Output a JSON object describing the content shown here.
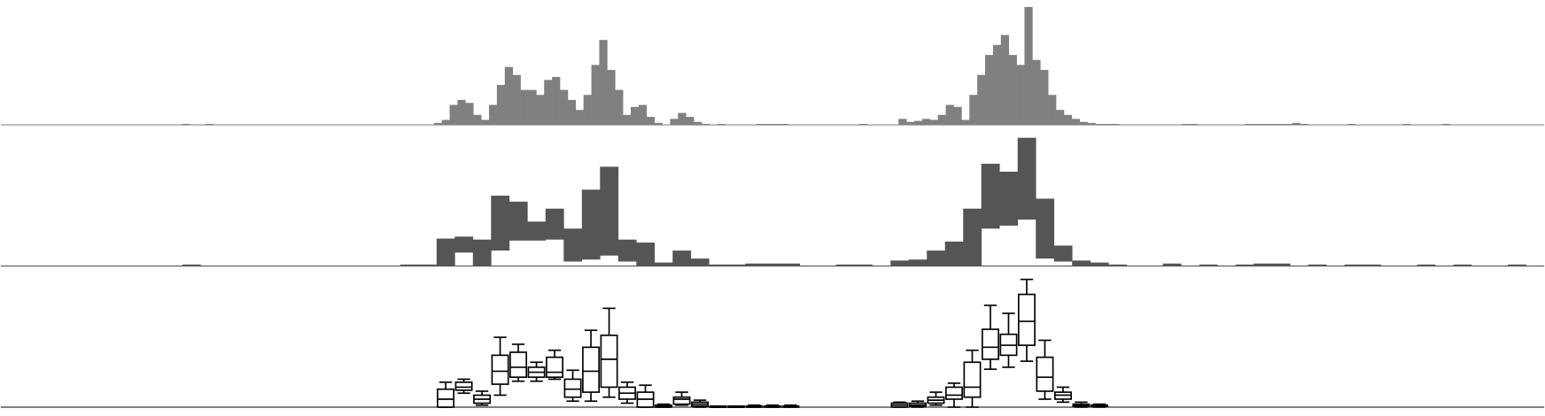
{
  "chart_data": [
    {
      "type": "bar",
      "color": "#808080",
      "ylim": [
        0,
        125
      ],
      "values": [
        0,
        0,
        0,
        0,
        0,
        0,
        0,
        0,
        0,
        0,
        0,
        0,
        0,
        0,
        0,
        0,
        0,
        0,
        0,
        0,
        0,
        0,
        0,
        1,
        0,
        0,
        1,
        0,
        0,
        0,
        0,
        0,
        0,
        0,
        0,
        0,
        0,
        0,
        0,
        0,
        0,
        0,
        0,
        0,
        0,
        0,
        0,
        0,
        0,
        0,
        0,
        0,
        0,
        0,
        0,
        2,
        5,
        20,
        25,
        22,
        10,
        5,
        20,
        40,
        58,
        50,
        35,
        35,
        30,
        45,
        48,
        35,
        25,
        15,
        30,
        60,
        85,
        55,
        35,
        10,
        18,
        20,
        8,
        2,
        0,
        6,
        12,
        8,
        3,
        1,
        0,
        1,
        0,
        0,
        0,
        0,
        1,
        1,
        1,
        1,
        0,
        0,
        0,
        0,
        0,
        0,
        0,
        0,
        0,
        1,
        0,
        0,
        0,
        0,
        6,
        3,
        4,
        6,
        5,
        10,
        20,
        18,
        5,
        30,
        50,
        70,
        80,
        90,
        70,
        60,
        118,
        65,
        55,
        30,
        15,
        10,
        6,
        3,
        2,
        1,
        1,
        1,
        0,
        0,
        0,
        0,
        0,
        0,
        0,
        0,
        1,
        1,
        0,
        0,
        0,
        0,
        0,
        0,
        1,
        1,
        1,
        1,
        1,
        1,
        2,
        1,
        0,
        0,
        0,
        0,
        0,
        1,
        0,
        0,
        0,
        0,
        0,
        0,
        1,
        0,
        0,
        0,
        0,
        1,
        0,
        0,
        0,
        0,
        0,
        0,
        0,
        0,
        0,
        0,
        0,
        0
      ]
    },
    {
      "type": "range",
      "color": "#555555",
      "ylim": [
        0,
        135
      ],
      "series": [
        {
          "values": [
            0,
            0,
            0,
            0,
            0,
            0,
            0,
            0,
            0,
            0,
            1,
            0,
            0,
            0,
            0,
            0,
            0,
            0,
            0,
            0,
            0,
            0,
            1,
            1,
            27,
            29,
            26,
            70,
            64,
            44,
            57,
            37,
            76,
            99,
            26,
            23,
            3,
            15,
            7,
            1,
            1,
            2,
            2,
            2,
            0,
            0,
            1,
            1,
            0,
            5,
            6,
            15,
            24,
            57,
            102,
            94,
            128,
            67,
            20,
            5,
            3,
            1,
            0,
            0,
            2,
            0,
            1,
            0,
            1,
            2,
            2,
            0,
            1,
            0,
            1,
            1,
            0,
            0,
            1,
            0,
            1,
            0,
            0,
            1,
            0
          ]
        },
        {
          "values": [
            0,
            0,
            0,
            0,
            0,
            0,
            0,
            0,
            0,
            0,
            0,
            0,
            0,
            0,
            0,
            0,
            0,
            0,
            0,
            0,
            0,
            0,
            0,
            0,
            0,
            13,
            0,
            15,
            25,
            25,
            26,
            4,
            6,
            10,
            4,
            0,
            0,
            0,
            0,
            0,
            0,
            0,
            0,
            0,
            0,
            0,
            0,
            0,
            0,
            0,
            0,
            0,
            0,
            0,
            37,
            40,
            46,
            7,
            4,
            0,
            0,
            0,
            0,
            0,
            0,
            0,
            0,
            0,
            0,
            0,
            0,
            0,
            0,
            0,
            0,
            0,
            0,
            0,
            0,
            0,
            0,
            0,
            0,
            0,
            0
          ]
        }
      ]
    },
    {
      "type": "box",
      "ylim": [
        0,
        135
      ],
      "boxes": [
        null,
        null,
        null,
        null,
        null,
        null,
        null,
        null,
        null,
        null,
        null,
        null,
        null,
        null,
        null,
        null,
        null,
        null,
        null,
        null,
        null,
        null,
        null,
        null,
        [
          0,
          0,
          8,
          18,
          25
        ],
        [
          14,
          17,
          20,
          25,
          28
        ],
        [
          2,
          4,
          8,
          12,
          16
        ],
        [
          12,
          23,
          36,
          52,
          70
        ],
        [
          26,
          30,
          40,
          55,
          63
        ],
        [
          26,
          30,
          35,
          40,
          45
        ],
        [
          28,
          30,
          35,
          50,
          57
        ],
        [
          6,
          10,
          18,
          28,
          37
        ],
        [
          6,
          15,
          36,
          60,
          77
        ],
        [
          10,
          20,
          48,
          72,
          99
        ],
        [
          4,
          8,
          14,
          20,
          25
        ],
        [
          0,
          0,
          8,
          15,
          22
        ],
        [
          0,
          0,
          1,
          2,
          3
        ],
        [
          2,
          3,
          8,
          10,
          15
        ],
        [
          0,
          1,
          3,
          5,
          7
        ],
        [
          0,
          0,
          0,
          1,
          1
        ],
        [
          0,
          0,
          0,
          1,
          1
        ],
        [
          0,
          0,
          1,
          1,
          2
        ],
        [
          0,
          0,
          1,
          1,
          2
        ],
        [
          0,
          0,
          1,
          1,
          2
        ],
        null,
        null,
        null,
        null,
        null,
        [
          0,
          0,
          2,
          4,
          5
        ],
        [
          0,
          1,
          2,
          4,
          6
        ],
        [
          2,
          4,
          7,
          10,
          15
        ],
        [
          0,
          8,
          12,
          20,
          24
        ],
        [
          0,
          10,
          20,
          45,
          57
        ],
        [
          38,
          48,
          60,
          78,
          102
        ],
        [
          40,
          52,
          62,
          73,
          94
        ],
        [
          46,
          62,
          86,
          113,
          128
        ],
        [
          8,
          16,
          30,
          50,
          67
        ],
        [
          5,
          8,
          12,
          15,
          20
        ],
        [
          0,
          1,
          2,
          3,
          5
        ],
        [
          0,
          1,
          2,
          2,
          3
        ],
        null,
        null,
        null,
        null,
        null,
        null,
        null,
        null,
        null,
        null,
        null,
        null,
        null,
        null,
        null,
        null,
        null,
        null,
        null,
        null,
        null,
        null,
        null,
        null
      ]
    }
  ]
}
